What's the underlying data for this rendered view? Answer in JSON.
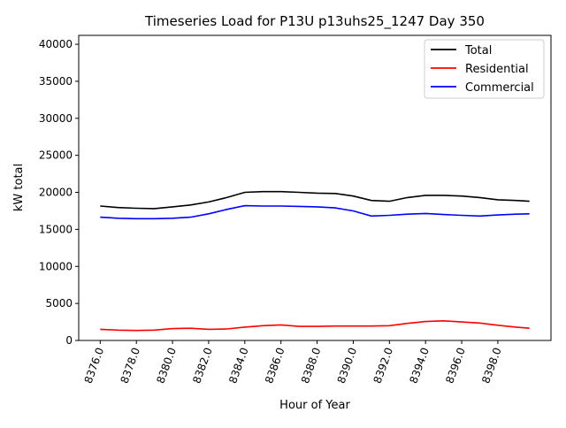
{
  "chart_data": {
    "type": "line",
    "title": "Timeseries Load for P13U p13uhs25_1247  Day 350",
    "xlabel": "Hour of Year",
    "ylabel": "kW total",
    "xlim": [
      8374.81,
      8400.94
    ],
    "ylim": [
      0,
      41200
    ],
    "xticks": [
      8376,
      8378,
      8380,
      8382,
      8384,
      8386,
      8388,
      8390,
      8392,
      8394,
      8396,
      8398
    ],
    "xtick_labels": [
      "8376.0",
      "8378.0",
      "8380.0",
      "8382.0",
      "8384.0",
      "8386.0",
      "8388.0",
      "8390.0",
      "8392.0",
      "8394.0",
      "8396.0",
      "8398.0"
    ],
    "yticks": [
      0,
      5000,
      10000,
      15000,
      20000,
      25000,
      30000,
      35000,
      40000
    ],
    "ytick_labels": [
      "0",
      "5000",
      "10000",
      "15000",
      "20000",
      "25000",
      "30000",
      "35000",
      "40000"
    ],
    "grid": false,
    "legend_position": "top-right",
    "x": [
      8376,
      8377,
      8378,
      8379,
      8380,
      8381,
      8382,
      8383,
      8384,
      8385,
      8386,
      8387,
      8388,
      8389,
      8390,
      8391,
      8392,
      8393,
      8394,
      8395,
      8396,
      8397,
      8398,
      8399,
      8399.75
    ],
    "series": [
      {
        "name": "Total",
        "color": "#000000",
        "values": [
          18150,
          17950,
          17850,
          17800,
          18050,
          18300,
          18700,
          19300,
          20000,
          20100,
          20100,
          20000,
          19900,
          19850,
          19500,
          18900,
          18800,
          19300,
          19600,
          19600,
          19500,
          19300,
          19000,
          18900,
          18800
        ]
      },
      {
        "name": "Residential",
        "color": "#ff0000",
        "values": [
          1500,
          1400,
          1350,
          1400,
          1600,
          1650,
          1500,
          1550,
          1800,
          2000,
          2100,
          1900,
          1900,
          1950,
          1950,
          1950,
          2000,
          2300,
          2550,
          2650,
          2500,
          2350,
          2050,
          1800,
          1650
        ]
      },
      {
        "name": "Commercial",
        "color": "#0000ff",
        "values": [
          16650,
          16500,
          16450,
          16450,
          16500,
          16650,
          17100,
          17700,
          18200,
          18150,
          18150,
          18100,
          18050,
          17900,
          17500,
          16800,
          16900,
          17050,
          17150,
          17000,
          16900,
          16800,
          16950,
          17050,
          17100
        ]
      }
    ]
  }
}
